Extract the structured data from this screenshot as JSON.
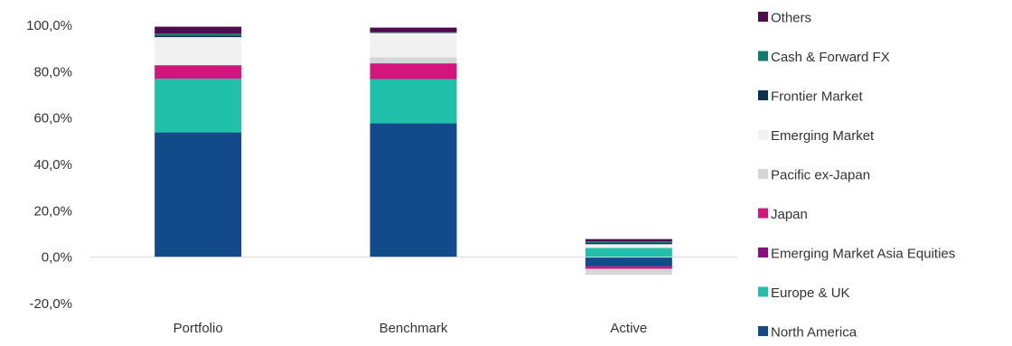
{
  "chart_data": {
    "type": "bar",
    "stacked": true,
    "categories": [
      "Portfolio",
      "Benchmark",
      "Active"
    ],
    "ylim": [
      -20,
      100
    ],
    "yticks": [
      {
        "value": -20,
        "label": "-20,0%"
      },
      {
        "value": 0,
        "label": "0,0%"
      },
      {
        "value": 20,
        "label": "20,0%"
      },
      {
        "value": 40,
        "label": "40,0%"
      },
      {
        "value": 60,
        "label": "60,0%"
      },
      {
        "value": 80,
        "label": "80,0%"
      },
      {
        "value": 100,
        "label": "100,0%"
      }
    ],
    "legend_position": "right",
    "series": [
      {
        "name": "North America",
        "color": "#134b8a",
        "values": [
          53.8,
          57.8,
          -4.0
        ]
      },
      {
        "name": "Europe & UK",
        "color": "#20c0ab",
        "values": [
          23.2,
          19.0,
          4.0
        ]
      },
      {
        "name": "Emerging Market Asia Equities",
        "color": "#8a0f86",
        "values": [
          0.0,
          0.0,
          0.0
        ]
      },
      {
        "name": "Japan",
        "color": "#d4147f",
        "values": [
          5.8,
          6.8,
          -1.0
        ]
      },
      {
        "name": "Pacific ex-Japan",
        "color": "#d6d6d6",
        "values": [
          0.0,
          2.6,
          -2.6
        ]
      },
      {
        "name": "Emerging Market",
        "color": "#f1f1f1",
        "values": [
          12.1,
          10.5,
          1.6
        ]
      },
      {
        "name": "Frontier Market",
        "color": "#0d2f53",
        "values": [
          0.7,
          0.2,
          0.5
        ]
      },
      {
        "name": "Cash & Forward FX",
        "color": "#127a6a",
        "values": [
          0.8,
          0.1,
          0.7
        ]
      },
      {
        "name": "Others",
        "color": "#4e0c4f",
        "values": [
          3.0,
          2.0,
          1.0
        ]
      }
    ],
    "legend_order": [
      "Others",
      "Cash & Forward FX",
      "Frontier Market",
      "Emerging Market",
      "Pacific ex-Japan",
      "Japan",
      "Emerging Market Asia Equities",
      "Europe & UK",
      "North America"
    ]
  }
}
